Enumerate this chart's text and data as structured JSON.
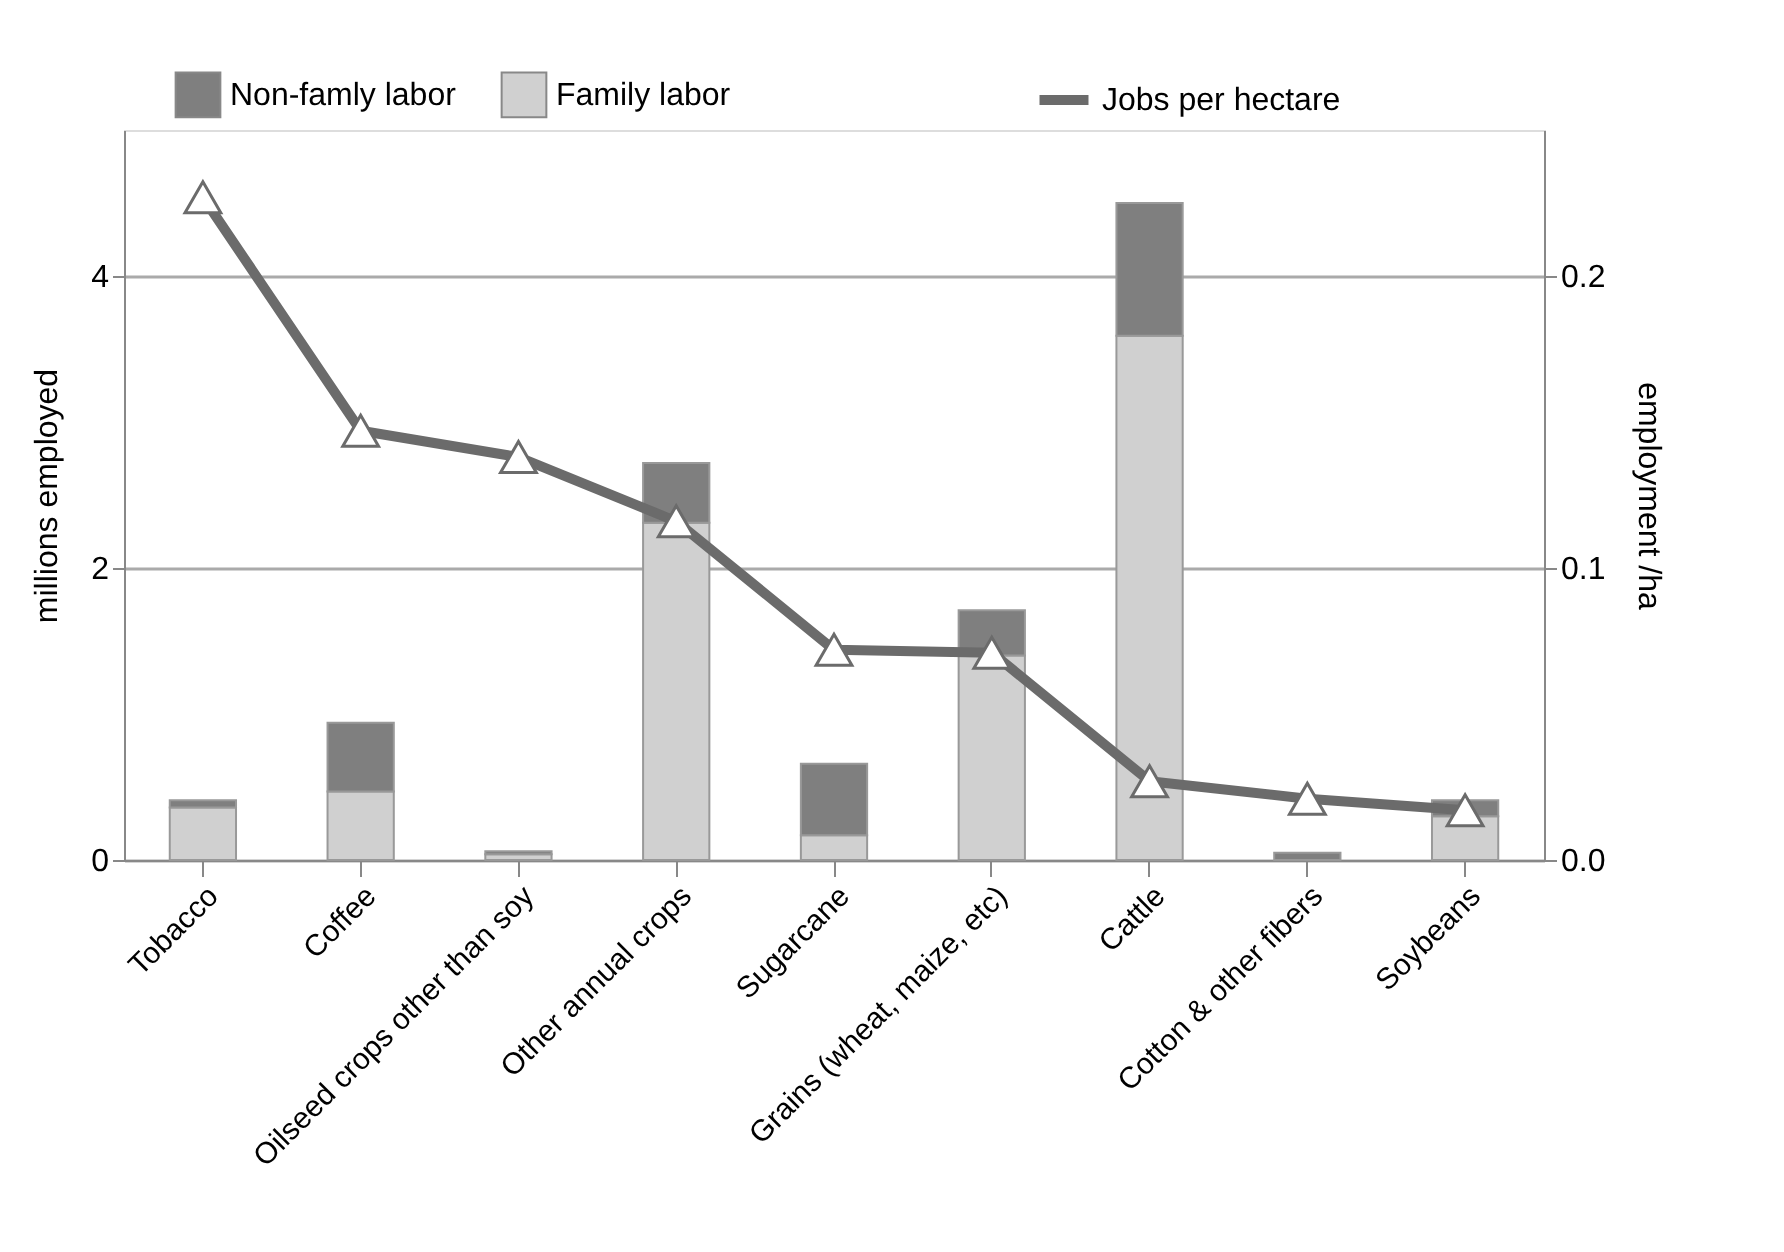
{
  "chart_data": {
    "type": "bar",
    "stacked": true,
    "categories": [
      "Tobacco",
      "Coffee",
      "Oilseed crops other than soy",
      "Other annual crops",
      "Sugarcane",
      "Grains (wheat, maize, etc)",
      "Cattle",
      "Cotton & other fibers",
      "Soybeans"
    ],
    "ylabel": "millions employed",
    "y2label": "employment /ha",
    "ylim": [
      0,
      5
    ],
    "yticks": [
      0,
      2,
      4
    ],
    "y2lim": [
      0,
      0.25
    ],
    "y2ticks": [
      {
        "value": 0,
        "label": "0.0"
      },
      {
        "value": 0.1,
        "label": "0.1"
      },
      {
        "value": 0.2,
        "label": "0.2"
      }
    ],
    "grid": "y",
    "legend": "top",
    "marker": "triangle",
    "line_style": "solid",
    "series": [
      {
        "name": "Family labor",
        "color": "#d0d0d0",
        "values": [
          0.36,
          0.47,
          0.04,
          2.31,
          0.17,
          1.4,
          3.59,
          null,
          0.3
        ]
      },
      {
        "name": "Non-famly labor",
        "color": "#7f7f7f",
        "values": [
          0.05,
          0.47,
          0.02,
          0.41,
          0.49,
          0.31,
          0.91,
          0.05,
          0.11
        ]
      },
      {
        "name": "Jobs per hectare",
        "type": "line",
        "axis": "y2",
        "color": "#6b6b6b",
        "values": [
          0.227,
          0.147,
          0.138,
          0.116,
          0.072,
          0.071,
          0.027,
          0.021,
          0.017
        ]
      }
    ]
  }
}
